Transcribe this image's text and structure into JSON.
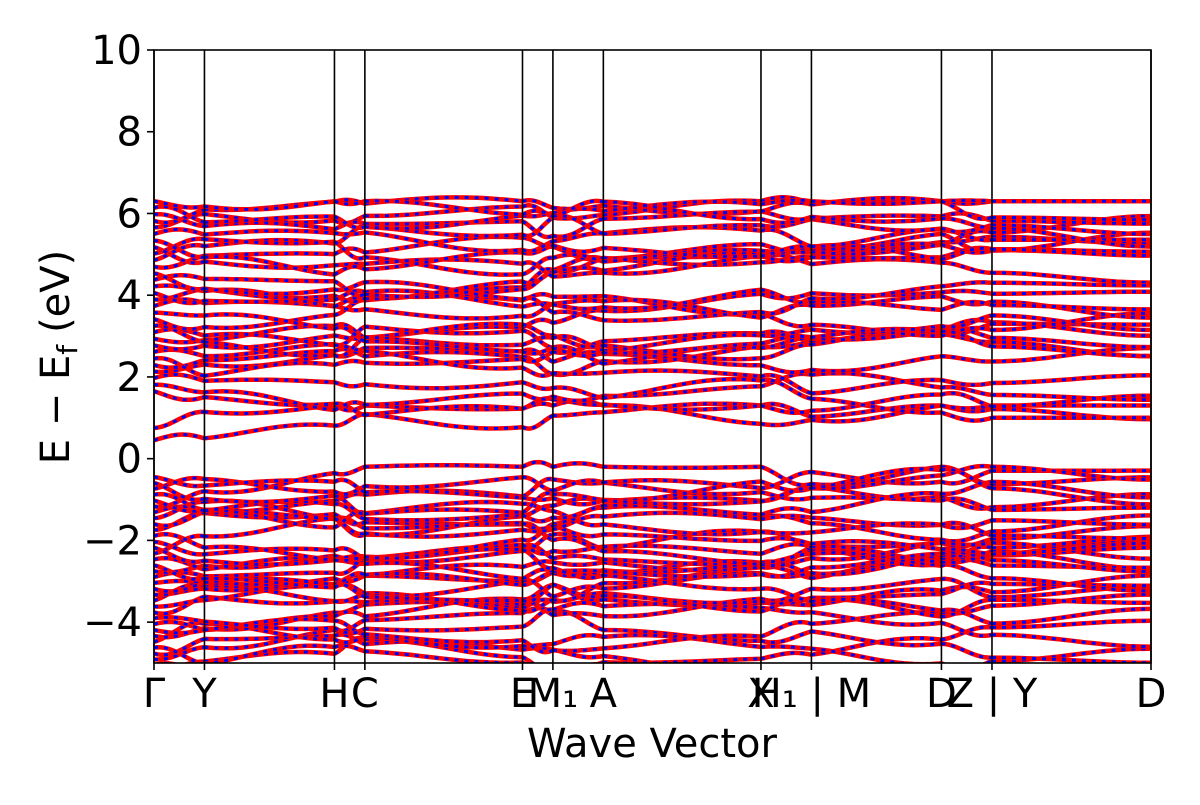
{
  "chart_data": {
    "type": "line",
    "xlabel": "Wave Vector",
    "ylabel": "E − E_f (eV)",
    "ylabel_parts": {
      "main": "E − E",
      "sub": "f",
      "unit": "(eV)"
    },
    "ylim": [
      -5,
      10
    ],
    "yticks": [
      {
        "value": 10,
        "label": "10"
      },
      {
        "value": 8,
        "label": "8"
      },
      {
        "value": 6,
        "label": "6"
      },
      {
        "value": 4,
        "label": "4"
      },
      {
        "value": 2,
        "label": "2"
      },
      {
        "value": 0,
        "label": "0"
      },
      {
        "value": -2,
        "label": "−2"
      },
      {
        "value": -4,
        "label": "−4"
      }
    ],
    "kpath": [
      {
        "label": "Γ",
        "x": 0
      },
      {
        "label": "Y",
        "x": 0.0506
      },
      {
        "label": "H",
        "x": 0.181
      },
      {
        "label": "C",
        "x": 0.2115
      },
      {
        "label": "E",
        "x": 0.3696
      },
      {
        "label": "M₁",
        "x": 0.4001
      },
      {
        "label": "A",
        "x": 0.4507
      },
      {
        "label": "X",
        "x": 0.6088
      },
      {
        "label": "H₁ | M",
        "x": 0.6594
      },
      {
        "label": "D",
        "x": 0.7898
      },
      {
        "label": "Z | Y",
        "x": 0.8405
      },
      {
        "label": "D",
        "x": 1.0
      }
    ],
    "x_break_index": 10,
    "series_colors": {
      "solid": "#ff0000",
      "dashed": "#0000ff"
    },
    "grid": false,
    "legend": "none"
  }
}
